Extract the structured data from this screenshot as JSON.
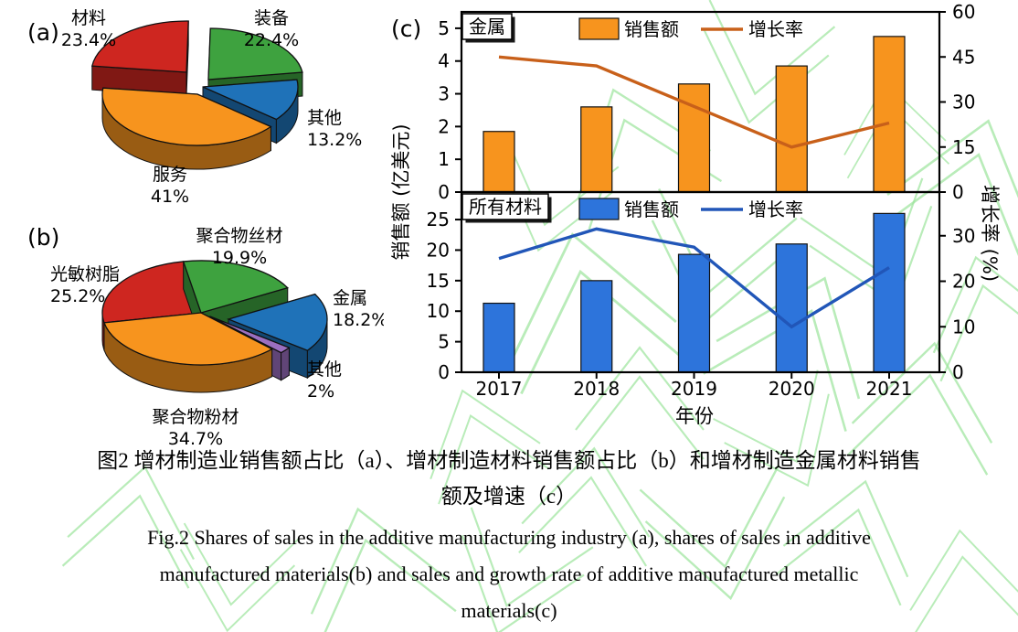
{
  "figure": {
    "panel_a_letter": "(a)",
    "panel_b_letter": "(b)",
    "panel_c_letter": "(c)",
    "caption": {
      "cn_line1": "图2  增材制造业销售额占比（a）、增材制造材料销售额占比（b）和增材制造金属材料销售",
      "cn_line2": "额及增速（c）",
      "en_line1": "Fig.2 Shares of sales in the additive manufacturing industry (a), shares of sales in additive",
      "en_line2": "manufactured materials(b) and sales and growth rate of additive manufactured metallic",
      "en_line3": "materials(c)"
    }
  },
  "colors": {
    "pie_red": "#CE2620",
    "pie_green": "#3EA23F",
    "pie_blue": "#1F72B8",
    "pie_orange": "#F7941E",
    "pie_purple": "#9B6FC0",
    "metal_bar": "#F7941E",
    "metal_line": "#C8601A",
    "all_bar": "#2D74DB",
    "all_line": "#2156B8",
    "watermark_green": "#9BE49B"
  },
  "axes": {
    "x_label": "年份",
    "y_left_label": "销售额 (亿美元)",
    "y_right_label": "增长率 (%)"
  },
  "chart_data": [
    {
      "type": "pie",
      "panel": "a",
      "title": "增材制造业销售额占比",
      "slices": [
        {
          "label": "装备",
          "value": 22.4,
          "pct_label": "22.4%",
          "color": "#3EA23F"
        },
        {
          "label": "其他",
          "value": 13.2,
          "pct_label": "13.2%",
          "color": "#1F72B8"
        },
        {
          "label": "服务",
          "value": 41,
          "pct_label": "41%",
          "color": "#F7941E"
        },
        {
          "label": "材料",
          "value": 23.4,
          "pct_label": "23.4%",
          "color": "#CE2620"
        }
      ]
    },
    {
      "type": "pie",
      "panel": "b",
      "title": "增材制造材料销售额占比",
      "slices": [
        {
          "label": "聚合物丝材",
          "value": 19.9,
          "pct_label": "19.9%",
          "color": "#3EA23F"
        },
        {
          "label": "金属",
          "value": 18.2,
          "pct_label": "18.2%",
          "color": "#1F72B8"
        },
        {
          "label": "其他",
          "value": 2,
          "pct_label": "2%",
          "color": "#9B6FC0"
        },
        {
          "label": "聚合物粉材",
          "value": 34.7,
          "pct_label": "34.7%",
          "color": "#F7941E"
        },
        {
          "label": "光敏树脂",
          "value": 25.2,
          "pct_label": "25.2%",
          "color": "#CE2620"
        }
      ]
    },
    {
      "type": "bar+line",
      "panel": "c",
      "subtitle": "金属",
      "categories": [
        "2017",
        "2018",
        "2019",
        "2020",
        "2021"
      ],
      "series": [
        {
          "name": "销售额",
          "type": "bar",
          "axis": "left",
          "values": [
            1.85,
            2.6,
            3.3,
            3.85,
            4.75
          ],
          "color": "#F7941E"
        },
        {
          "name": "增长率",
          "type": "line",
          "axis": "right",
          "values": [
            45,
            42,
            28.5,
            15,
            23
          ],
          "color": "#C8601A"
        }
      ],
      "ylabel_left": "销售额 (亿美元)",
      "ylabel_right": "增长率 (%)",
      "left_ticks": [
        "0",
        "1",
        "2",
        "3",
        "4",
        "5"
      ],
      "left_max": 5.5,
      "right_ticks": [
        "0",
        "15",
        "30",
        "45",
        "60"
      ],
      "right_max": 60
    },
    {
      "type": "bar+line",
      "panel": "c",
      "subtitle": "所有材料",
      "categories": [
        "2017",
        "2018",
        "2019",
        "2020",
        "2021"
      ],
      "series": [
        {
          "name": "销售额",
          "type": "bar",
          "axis": "left",
          "values": [
            11.3,
            15,
            19.3,
            21,
            26
          ],
          "color": "#2D74DB"
        },
        {
          "name": "增长率",
          "type": "line",
          "axis": "right",
          "values": [
            25,
            31.5,
            27.5,
            10,
            23
          ],
          "color": "#2156B8"
        }
      ],
      "ylabel_left": "销售额 (亿美元)",
      "ylabel_right": "增长率 (%)",
      "xlabel": "年份",
      "left_ticks": [
        "0",
        "5",
        "10",
        "15",
        "20",
        "25"
      ],
      "left_max": 29.5,
      "right_ticks": [
        "0",
        "10",
        "20",
        "30"
      ],
      "right_max": 39.6
    }
  ]
}
